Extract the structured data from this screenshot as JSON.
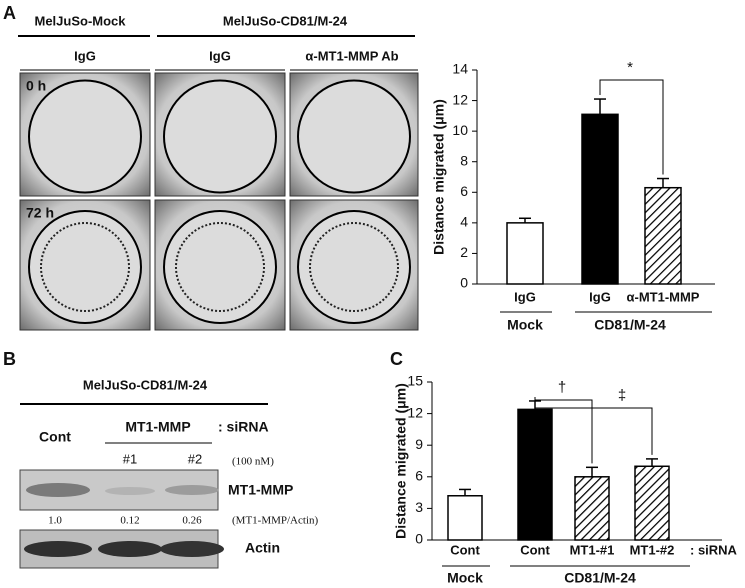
{
  "chart_data": [
    {
      "type": "bar",
      "panel": "A",
      "y_label": "Distance migrated (μm)",
      "categories": [
        "IgG",
        "IgG",
        "α-MT1-MMP"
      ],
      "values": [
        4.0,
        11.1,
        6.3
      ],
      "errors": [
        0.3,
        1.0,
        0.6
      ],
      "fills": [
        "#ffffff",
        "#000000",
        "hatch"
      ],
      "groups": [
        "Mock",
        "CD81/M-24"
      ],
      "annotations": [
        "*"
      ],
      "ylim": [
        0,
        14
      ],
      "yticks": [
        0,
        2,
        4,
        6,
        8,
        10,
        12,
        14
      ]
    },
    {
      "type": "bar",
      "panel": "C",
      "y_label": "Distance migrated (μm)",
      "categories": [
        "Cont",
        "Cont",
        "MT1-#1",
        "MT1-#2"
      ],
      "values": [
        4.2,
        12.4,
        6.0,
        7.0
      ],
      "errors": [
        0.6,
        0.8,
        0.9,
        0.7
      ],
      "fills": [
        "#ffffff",
        "#000000",
        "hatch",
        "hatch"
      ],
      "groups": [
        "Mock",
        "CD81/M-24"
      ],
      "x_suffix": ": siRNA",
      "annotations": [
        "†",
        "‡"
      ],
      "ylim": [
        0,
        15
      ],
      "yticks": [
        0,
        3,
        6,
        9,
        12,
        15
      ]
    }
  ],
  "panel_a": {
    "letter": "A",
    "headers": [
      "MelJuSo-Mock",
      "MelJuSo-CD81/M-24"
    ],
    "columns": [
      "IgG",
      "IgG",
      "α-MT1-MMP Ab"
    ],
    "rows": [
      "0 h",
      "72 h"
    ]
  },
  "panel_b": {
    "letter": "B",
    "header": "MelJuSo-CD81/M-24",
    "control": "Cont",
    "treatment": "MT1-MMP",
    "sirna": ": siRNA",
    "dose": "(100 nM)",
    "lanes": [
      "#1",
      "#2"
    ],
    "blots": [
      "MT1-MMP",
      "Actin"
    ],
    "ratios": [
      "1.0",
      "0.12",
      "0.26"
    ],
    "ratio_label": "(MT1-MMP/Actin)"
  }
}
